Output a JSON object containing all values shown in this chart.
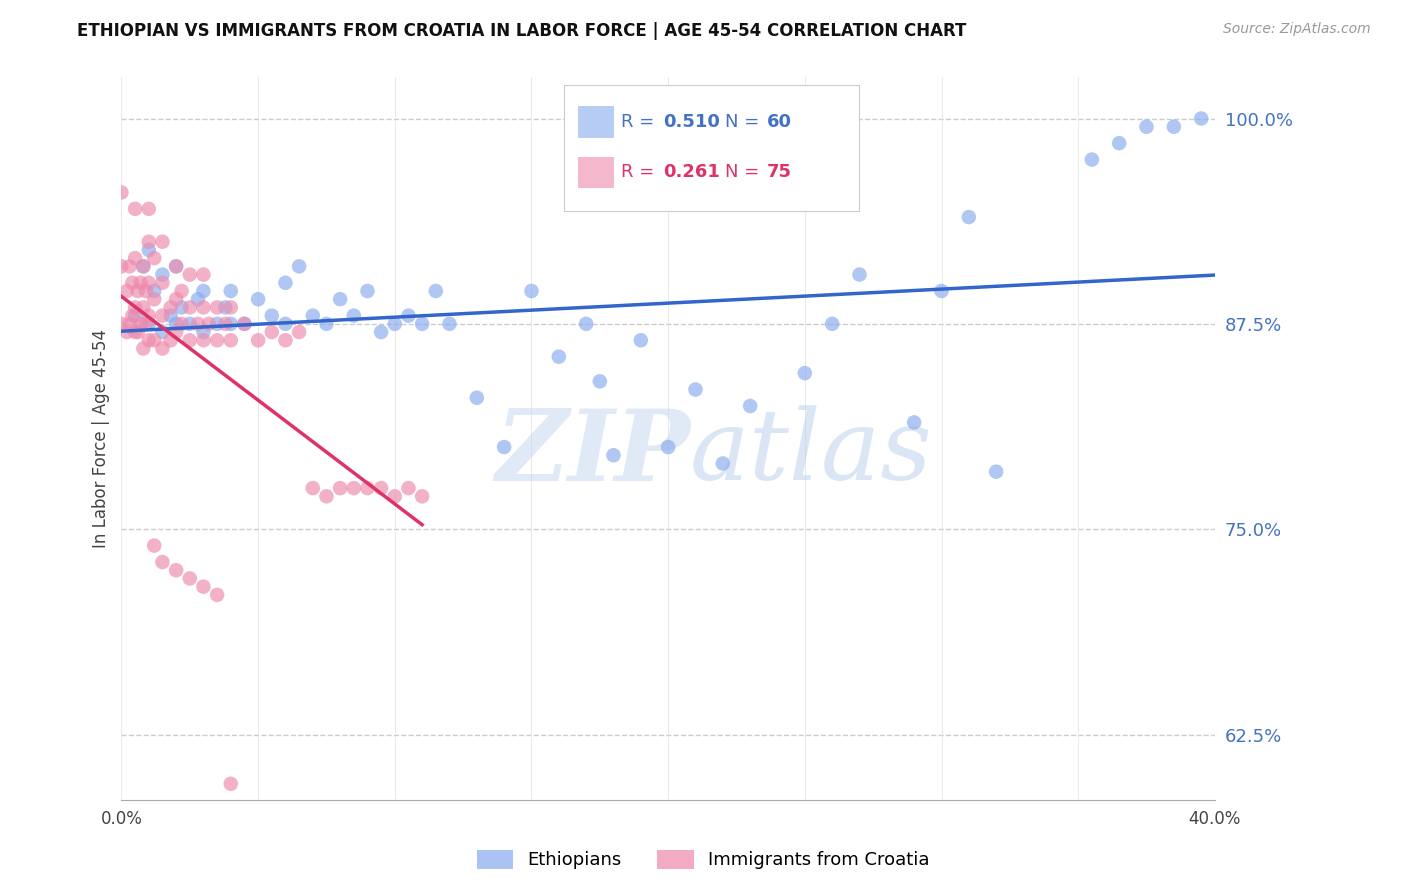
{
  "title": "ETHIOPIAN VS IMMIGRANTS FROM CROATIA IN LABOR FORCE | AGE 45-54 CORRELATION CHART",
  "source": "Source: ZipAtlas.com",
  "ylabel": "In Labor Force | Age 45-54",
  "xlim": [
    0.0,
    0.4
  ],
  "ylim": [
    0.585,
    1.025
  ],
  "yticks_right": [
    0.625,
    0.75,
    0.875,
    1.0
  ],
  "ytick_right_labels": [
    "62.5%",
    "75.0%",
    "87.5%",
    "100.0%"
  ],
  "grid_color": "#cccccc",
  "background_color": "#ffffff",
  "blue_color": "#88aaee",
  "pink_color": "#ee88aa",
  "blue_line_color": "#3366cc",
  "pink_line_color": "#dd3366",
  "legend_blue_R": "0.510",
  "legend_blue_N": "60",
  "legend_pink_R": "0.261",
  "legend_pink_N": "75",
  "watermark": "ZIPatlas",
  "blue_scatter_x": [
    0.005,
    0.008,
    0.01,
    0.01,
    0.012,
    0.015,
    0.015,
    0.018,
    0.02,
    0.02,
    0.022,
    0.025,
    0.028,
    0.03,
    0.03,
    0.035,
    0.038,
    0.04,
    0.04,
    0.045,
    0.05,
    0.055,
    0.06,
    0.06,
    0.065,
    0.07,
    0.075,
    0.08,
    0.085,
    0.09,
    0.095,
    0.1,
    0.105,
    0.11,
    0.115,
    0.12,
    0.13,
    0.14,
    0.15,
    0.16,
    0.17,
    0.175,
    0.18,
    0.19,
    0.2,
    0.21,
    0.22,
    0.23,
    0.25,
    0.26,
    0.27,
    0.29,
    0.3,
    0.31,
    0.32,
    0.355,
    0.365,
    0.375,
    0.385,
    0.395
  ],
  "blue_scatter_y": [
    0.88,
    0.91,
    0.875,
    0.92,
    0.895,
    0.87,
    0.905,
    0.88,
    0.875,
    0.91,
    0.885,
    0.875,
    0.89,
    0.87,
    0.895,
    0.875,
    0.885,
    0.875,
    0.895,
    0.875,
    0.89,
    0.88,
    0.875,
    0.9,
    0.91,
    0.88,
    0.875,
    0.89,
    0.88,
    0.895,
    0.87,
    0.875,
    0.88,
    0.875,
    0.895,
    0.875,
    0.83,
    0.8,
    0.895,
    0.855,
    0.875,
    0.84,
    0.795,
    0.865,
    0.8,
    0.835,
    0.79,
    0.825,
    0.845,
    0.875,
    0.905,
    0.815,
    0.895,
    0.94,
    0.785,
    0.975,
    0.985,
    0.995,
    0.995,
    1.0
  ],
  "pink_scatter_x": [
    0.0,
    0.0,
    0.0,
    0.002,
    0.002,
    0.003,
    0.003,
    0.004,
    0.004,
    0.005,
    0.005,
    0.005,
    0.005,
    0.006,
    0.006,
    0.007,
    0.007,
    0.008,
    0.008,
    0.008,
    0.009,
    0.009,
    0.01,
    0.01,
    0.01,
    0.01,
    0.01,
    0.012,
    0.012,
    0.012,
    0.015,
    0.015,
    0.015,
    0.015,
    0.018,
    0.018,
    0.02,
    0.02,
    0.02,
    0.022,
    0.022,
    0.025,
    0.025,
    0.025,
    0.028,
    0.03,
    0.03,
    0.03,
    0.032,
    0.035,
    0.035,
    0.038,
    0.04,
    0.04,
    0.045,
    0.05,
    0.055,
    0.06,
    0.065,
    0.07,
    0.075,
    0.08,
    0.085,
    0.09,
    0.095,
    0.1,
    0.105,
    0.11,
    0.012,
    0.015,
    0.02,
    0.025,
    0.03,
    0.035,
    0.04
  ],
  "pink_scatter_y": [
    0.875,
    0.91,
    0.955,
    0.87,
    0.895,
    0.875,
    0.91,
    0.88,
    0.9,
    0.87,
    0.885,
    0.915,
    0.945,
    0.87,
    0.895,
    0.875,
    0.9,
    0.86,
    0.885,
    0.91,
    0.875,
    0.895,
    0.865,
    0.88,
    0.9,
    0.925,
    0.945,
    0.865,
    0.89,
    0.915,
    0.86,
    0.88,
    0.9,
    0.925,
    0.865,
    0.885,
    0.87,
    0.89,
    0.91,
    0.875,
    0.895,
    0.865,
    0.885,
    0.905,
    0.875,
    0.865,
    0.885,
    0.905,
    0.875,
    0.865,
    0.885,
    0.875,
    0.865,
    0.885,
    0.875,
    0.865,
    0.87,
    0.865,
    0.87,
    0.775,
    0.77,
    0.775,
    0.775,
    0.775,
    0.775,
    0.77,
    0.775,
    0.77,
    0.74,
    0.73,
    0.725,
    0.72,
    0.715,
    0.71,
    0.595
  ]
}
